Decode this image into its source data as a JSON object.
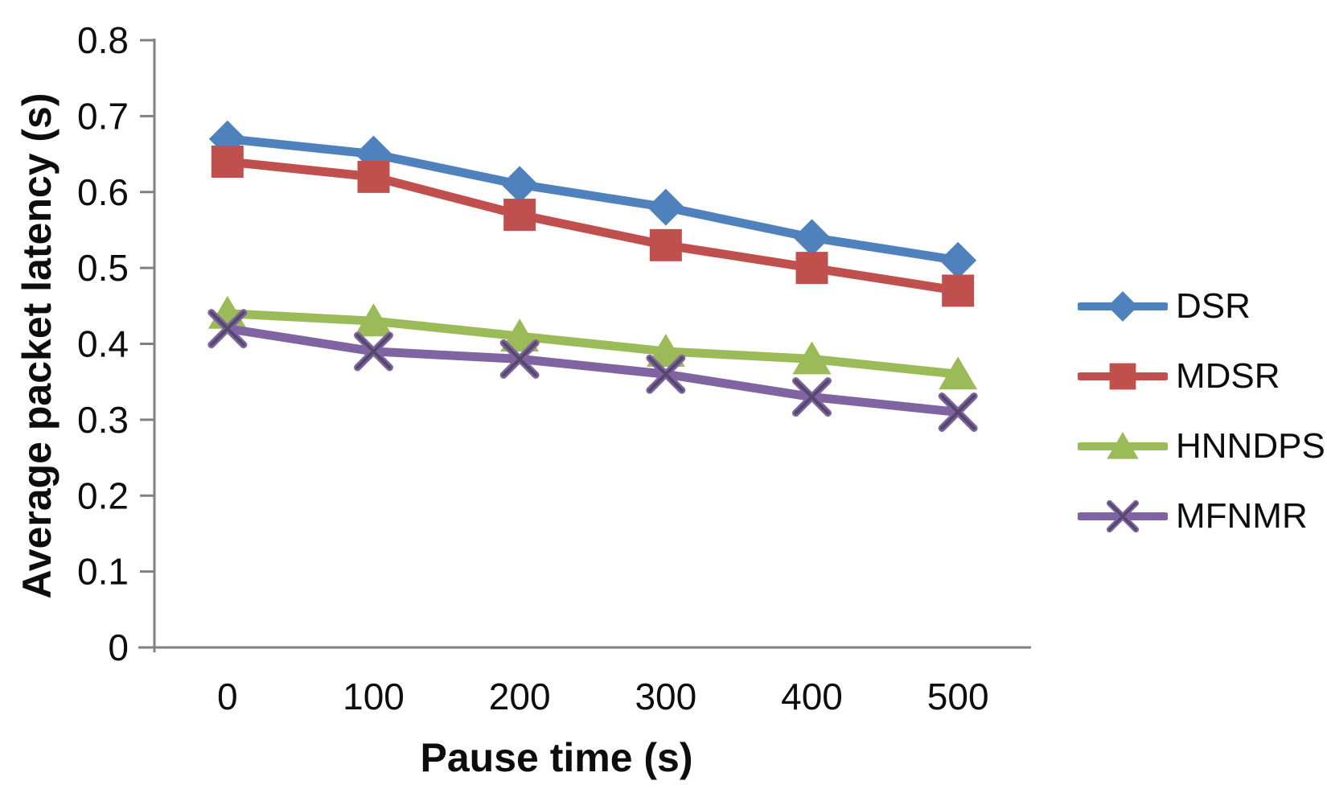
{
  "chart_data": {
    "type": "line",
    "title": "",
    "xlabel": "Pause time (s)",
    "ylabel": "Average packet latency (s)",
    "categories": [
      "0",
      "100",
      "200",
      "300",
      "400",
      "500"
    ],
    "x_values": [
      0,
      100,
      200,
      300,
      400,
      500
    ],
    "ylim": [
      0,
      0.8
    ],
    "ytick_step": 0.1,
    "yticks": [
      "0",
      "0.1",
      "0.2",
      "0.3",
      "0.4",
      "0.5",
      "0.6",
      "0.7",
      "0.8"
    ],
    "grid": "off",
    "legend_position": "right",
    "axis_color": "#808080",
    "tick_label_color": "#0d0d0d",
    "series": [
      {
        "name": "DSR",
        "marker": "diamond",
        "color": "#4F81BD",
        "values": [
          0.67,
          0.65,
          0.61,
          0.58,
          0.54,
          0.51
        ]
      },
      {
        "name": "MDSR",
        "marker": "square",
        "color": "#C0504D",
        "values": [
          0.64,
          0.62,
          0.57,
          0.53,
          0.5,
          0.47
        ]
      },
      {
        "name": "HNNDPS",
        "marker": "triangle",
        "color": "#9BBB59",
        "values": [
          0.44,
          0.43,
          0.41,
          0.39,
          0.38,
          0.36
        ]
      },
      {
        "name": "MFNMR",
        "marker": "x",
        "color": "#8064A2",
        "x_overlay_color": "#54496B",
        "values": [
          0.42,
          0.39,
          0.38,
          0.36,
          0.33,
          0.31
        ]
      }
    ]
  }
}
